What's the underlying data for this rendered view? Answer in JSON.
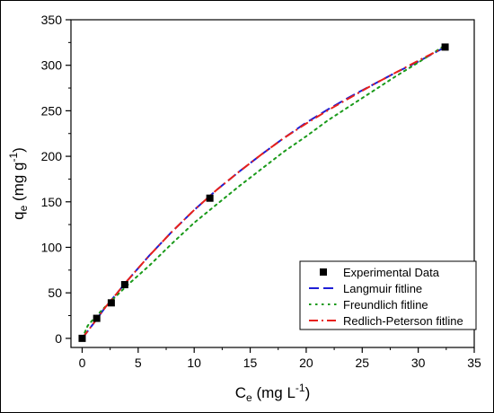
{
  "chart_data": {
    "type": "scatter",
    "xlabel": "C",
    "xlabel_sub": "e",
    "xlabel_unit": "(mg L",
    "xlabel_unit_sup": "-1",
    "xlabel_unit_end": ")",
    "ylabel": "q",
    "ylabel_sub": "e",
    "ylabel_unit": "(mg g",
    "ylabel_unit_sup": "-1",
    "ylabel_unit_end": ")",
    "xlim": [
      -1,
      35
    ],
    "ylim": [
      -10,
      350
    ],
    "x_ticks": [
      0,
      5,
      10,
      15,
      20,
      25,
      30,
      35
    ],
    "y_ticks": [
      0,
      50,
      100,
      150,
      200,
      250,
      300,
      350
    ],
    "grid": false,
    "legend_position": "bottom-right",
    "series": [
      {
        "name": "Experimental Data",
        "kind": "points",
        "color": "#000000",
        "points": [
          [
            0,
            0
          ],
          [
            1.3,
            22
          ],
          [
            2.6,
            39
          ],
          [
            3.8,
            59
          ],
          [
            11.4,
            154
          ],
          [
            32.4,
            320
          ]
        ]
      },
      {
        "name": "Langmuir fitline",
        "kind": "line",
        "style": "dash",
        "color": "#1f1fd6",
        "points": [
          [
            0,
            0
          ],
          [
            1,
            16
          ],
          [
            2,
            33
          ],
          [
            3,
            48
          ],
          [
            4,
            63
          ],
          [
            5,
            77
          ],
          [
            6,
            91
          ],
          [
            8,
            117
          ],
          [
            10,
            141
          ],
          [
            12,
            163
          ],
          [
            14,
            183
          ],
          [
            16,
            202
          ],
          [
            18,
            220
          ],
          [
            20,
            237
          ],
          [
            22,
            252
          ],
          [
            24,
            266
          ],
          [
            26,
            279
          ],
          [
            28,
            292
          ],
          [
            30,
            304
          ],
          [
            32.4,
            320
          ]
        ]
      },
      {
        "name": "Freundlich fitline",
        "kind": "line",
        "style": "dot",
        "color": "#1a9a1a",
        "points": [
          [
            0,
            0
          ],
          [
            0.5,
            14
          ],
          [
            1,
            21
          ],
          [
            2,
            34
          ],
          [
            3,
            46
          ],
          [
            4,
            58
          ],
          [
            5,
            69
          ],
          [
            6,
            80
          ],
          [
            8,
            104
          ],
          [
            10,
            127
          ],
          [
            12,
            147
          ],
          [
            14,
            167
          ],
          [
            16,
            186
          ],
          [
            18,
            205
          ],
          [
            20,
            222
          ],
          [
            22,
            240
          ],
          [
            24,
            256
          ],
          [
            26,
            272
          ],
          [
            28,
            288
          ],
          [
            30,
            303
          ],
          [
            32.4,
            322
          ]
        ]
      },
      {
        "name": "Redlich-Peterson fitline",
        "kind": "line",
        "style": "dashdot",
        "color": "#e8201a",
        "points": [
          [
            0,
            0
          ],
          [
            1,
            16
          ],
          [
            2,
            33
          ],
          [
            3,
            48
          ],
          [
            4,
            63
          ],
          [
            5,
            77
          ],
          [
            6,
            91
          ],
          [
            8,
            117
          ],
          [
            10,
            141
          ],
          [
            12,
            163
          ],
          [
            14,
            183
          ],
          [
            16,
            202
          ],
          [
            18,
            220
          ],
          [
            20,
            236
          ],
          [
            22,
            251
          ],
          [
            24,
            265
          ],
          [
            26,
            279
          ],
          [
            28,
            292
          ],
          [
            30,
            305
          ],
          [
            32.4,
            320
          ]
        ]
      }
    ]
  }
}
